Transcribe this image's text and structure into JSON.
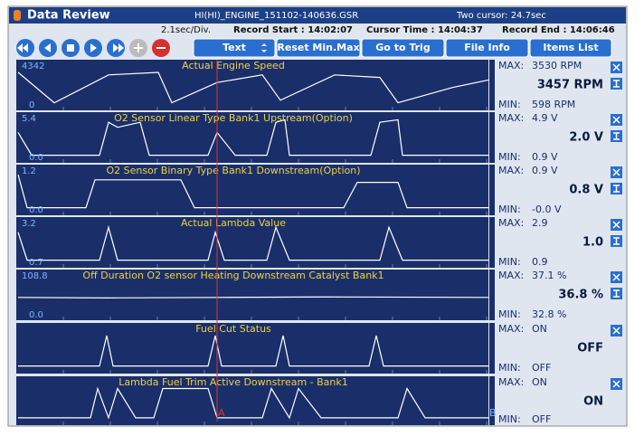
{
  "window": {
    "title": "Data Review",
    "file": "HI(HI)_ENGINE_151102-140636.GSR",
    "cursor_info": "Two cursor: 24.7sec"
  },
  "status_bar": {
    "time_div": "2.1sec/Div.",
    "record_start": "Record Start : 14:02:07",
    "cursor_time": "Cursor Time : 14:04:37",
    "record_end": "Record End : 14:06:46"
  },
  "toolbar": {
    "buttons": [
      "Text",
      "Reset Min.Max",
      "Go to Trig",
      "File Info",
      "Items List"
    ]
  },
  "labels": {
    "max": "MAX:",
    "min": "MIN:"
  },
  "cursors": [
    "A",
    "B"
  ],
  "channels": [
    {
      "name": "Actual Engine Speed",
      "scale_max": "4342",
      "scale_min": "0",
      "max": "3530 RPM",
      "value": "3457 RPM",
      "min": "598 RPM"
    },
    {
      "name": "O2 Sensor Linear Type Bank1 Upstream(Option)",
      "scale_max": "5.4",
      "scale_min": "0.0",
      "max": "4.9 V",
      "value": "2.0 V",
      "min": "0.9 V"
    },
    {
      "name": "O2 Sensor Binary Type Bank1 Downstream(Option)",
      "scale_max": "1.2",
      "scale_min": "0.0",
      "max": "0.9 V",
      "value": "0.8 V",
      "min": "-0.0 V"
    },
    {
      "name": "Actual Lambda Value",
      "scale_max": "3.2",
      "scale_min": "0.7",
      "max": "2.9",
      "value": "1.0",
      "min": "0.9"
    },
    {
      "name": "Off Duration O2 sensor Heating Downstream Catalyst Bank1",
      "scale_max": "108.8",
      "scale_min": "0.0",
      "max": "37.1 %",
      "value": "36.8 %",
      "min": "32.8 %"
    },
    {
      "name": "Fuel Cut Status",
      "max": "ON",
      "value": "OFF",
      "min": "OFF"
    },
    {
      "name": "Lambda Fuel Trim Active Downstream - Bank1",
      "max": "ON",
      "value": "ON",
      "min": "OFF"
    }
  ]
}
